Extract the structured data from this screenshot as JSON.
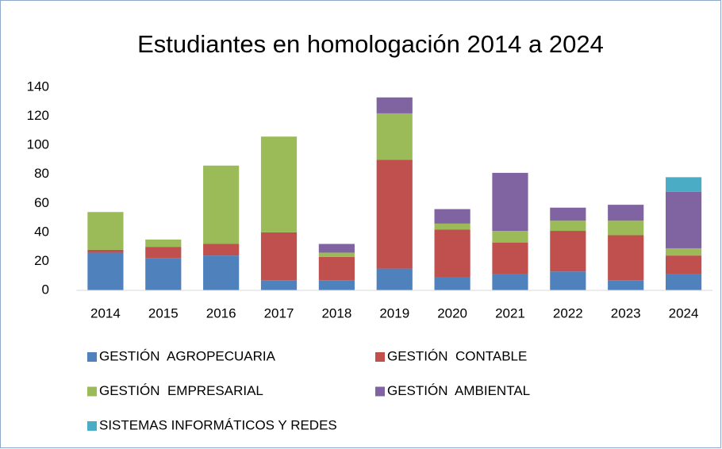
{
  "chart_data": {
    "type": "stacked_bar",
    "title": "Estudiantes en homologación 2014 a 2024",
    "categories": [
      "2014",
      "2015",
      "2016",
      "2017",
      "2018",
      "2019",
      "2020",
      "2021",
      "2022",
      "2023",
      "2024"
    ],
    "series": [
      {
        "name": "GESTIÓN  AGROPECUARIA",
        "color": "#4f81bd",
        "values": [
          26,
          22,
          24,
          7,
          7,
          15,
          9,
          11,
          13,
          7,
          11
        ]
      },
      {
        "name": "GESTIÓN  CONTABLE",
        "color": "#c0504d",
        "values": [
          2,
          8,
          8,
          33,
          16,
          75,
          33,
          22,
          28,
          31,
          13
        ]
      },
      {
        "name": "GESTIÓN  EMPRESARIAL",
        "color": "#9bbb59",
        "values": [
          26,
          5,
          54,
          66,
          3,
          32,
          4,
          8,
          7,
          10,
          5
        ]
      },
      {
        "name": "GESTIÓN  AMBIENTAL",
        "color": "#8064a2",
        "values": [
          0,
          0,
          0,
          0,
          6,
          11,
          10,
          40,
          9,
          11,
          39
        ]
      },
      {
        "name": "SISTEMAS INFORMÁTICOS Y REDES",
        "color": "#4bacc6",
        "values": [
          0,
          0,
          0,
          0,
          0,
          0,
          0,
          0,
          0,
          0,
          10
        ]
      }
    ],
    "ylim": [
      0,
      140
    ],
    "yticks": [
      0,
      20,
      40,
      60,
      80,
      100,
      120,
      140
    ],
    "grid": false,
    "legend": "bottom"
  }
}
